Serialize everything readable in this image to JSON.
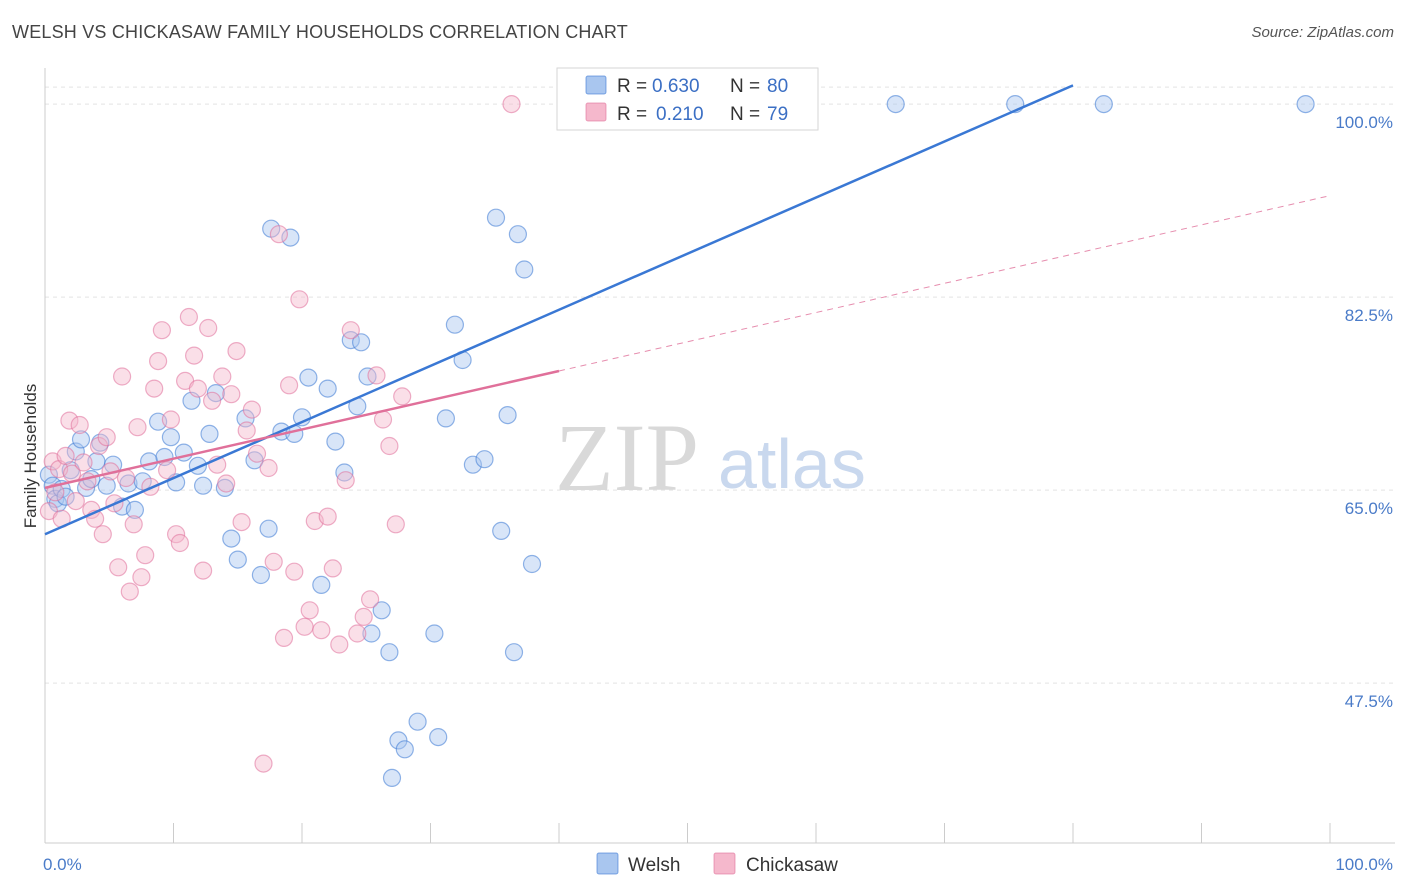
{
  "title": "WELSH VS CHICKASAW FAMILY HOUSEHOLDS CORRELATION CHART",
  "source": "Source: ZipAtlas.com",
  "watermark": {
    "zip": "ZIP",
    "atlas": "atlas"
  },
  "colors": {
    "welsh": "#3a78d4",
    "chickasaw": "#e0709a",
    "welsh_fill": "#a9c6ef",
    "chickasaw_fill": "#f5b8cc"
  },
  "chart_data": {
    "type": "scatter",
    "title": "WELSH VS CHICKASAW FAMILY HOUSEHOLDS CORRELATION CHART",
    "xlabel": "",
    "ylabel": "Family Households",
    "xlim": [
      0,
      100
    ],
    "ylim": [
      33,
      104
    ],
    "x_tick_labels": [
      {
        "value": 0,
        "label": "0.0%"
      },
      {
        "value": 100,
        "label": "100.0%"
      }
    ],
    "y_ticks": [
      {
        "value": 100,
        "label": "100.0%"
      },
      {
        "value": 82.5,
        "label": "82.5%"
      },
      {
        "value": 65,
        "label": "65.0%"
      },
      {
        "value": 47.5,
        "label": "47.5%"
      }
    ],
    "grid": true,
    "legend_position": "top-center",
    "legend": [
      {
        "name": "Welsh",
        "r_label": "R = ",
        "r": "0.630",
        "n_label": "N = ",
        "n": "80"
      },
      {
        "name": "Chickasaw",
        "r_label": "R = ",
        "r": "0.210",
        "n_label": "N = ",
        "n": "79"
      }
    ],
    "series": [
      {
        "name": "Welsh",
        "trend": {
          "x": [
            0,
            80
          ],
          "y": [
            61.0,
            101.7
          ]
        },
        "points": [
          [
            0.3,
            66.4
          ],
          [
            0.6,
            65.4
          ],
          [
            0.8,
            64.2
          ],
          [
            1.0,
            63.8
          ],
          [
            1.3,
            65.1
          ],
          [
            1.6,
            64.4
          ],
          [
            2.0,
            66.8
          ],
          [
            2.4,
            68.5
          ],
          [
            2.8,
            69.6
          ],
          [
            3.2,
            65.2
          ],
          [
            3.6,
            66.0
          ],
          [
            4.0,
            67.6
          ],
          [
            4.3,
            69.3
          ],
          [
            4.8,
            65.4
          ],
          [
            5.3,
            67.3
          ],
          [
            6.0,
            63.5
          ],
          [
            6.5,
            65.6
          ],
          [
            7.0,
            63.2
          ],
          [
            7.6,
            65.8
          ],
          [
            8.1,
            67.6
          ],
          [
            8.8,
            71.2
          ],
          [
            9.3,
            68.0
          ],
          [
            9.8,
            69.8
          ],
          [
            10.2,
            65.7
          ],
          [
            10.8,
            68.4
          ],
          [
            11.4,
            73.1
          ],
          [
            11.9,
            67.2
          ],
          [
            12.3,
            65.4
          ],
          [
            12.8,
            70.1
          ],
          [
            13.3,
            73.8
          ],
          [
            14.0,
            65.2
          ],
          [
            14.5,
            60.6
          ],
          [
            15.0,
            58.7
          ],
          [
            15.6,
            71.5
          ],
          [
            16.3,
            67.7
          ],
          [
            16.8,
            57.3
          ],
          [
            17.4,
            61.5
          ],
          [
            17.6,
            88.7
          ],
          [
            18.4,
            70.3
          ],
          [
            19.1,
            87.9
          ],
          [
            19.4,
            70.1
          ],
          [
            20.0,
            71.6
          ],
          [
            20.5,
            75.2
          ],
          [
            21.5,
            56.4
          ],
          [
            22.0,
            74.2
          ],
          [
            22.6,
            69.4
          ],
          [
            23.3,
            66.6
          ],
          [
            23.8,
            78.6
          ],
          [
            24.3,
            72.6
          ],
          [
            24.6,
            78.4
          ],
          [
            25.1,
            75.3
          ],
          [
            25.4,
            52.0
          ],
          [
            26.2,
            54.1
          ],
          [
            26.8,
            50.3
          ],
          [
            27.0,
            38.9
          ],
          [
            27.5,
            42.3
          ],
          [
            28.0,
            41.5
          ],
          [
            29.0,
            44.0
          ],
          [
            30.3,
            52.0
          ],
          [
            30.6,
            42.6
          ],
          [
            31.2,
            71.5
          ],
          [
            31.9,
            80.0
          ],
          [
            32.5,
            76.8
          ],
          [
            33.3,
            67.3
          ],
          [
            34.2,
            67.8
          ],
          [
            35.1,
            89.7
          ],
          [
            35.5,
            61.3
          ],
          [
            36.0,
            71.8
          ],
          [
            36.5,
            50.3
          ],
          [
            36.8,
            88.2
          ],
          [
            37.3,
            85.0
          ],
          [
            37.9,
            58.3
          ],
          [
            42.0,
            100.0
          ],
          [
            45.6,
            100.0
          ],
          [
            48.4,
            100.0
          ],
          [
            55.1,
            100.0
          ],
          [
            66.2,
            100.0
          ],
          [
            75.5,
            100.0
          ],
          [
            82.4,
            100.0
          ],
          [
            98.1,
            100.0
          ]
        ]
      },
      {
        "name": "Chickasaw",
        "trend": {
          "x": [
            0,
            40
          ],
          "y": [
            65.2,
            75.8
          ]
        },
        "trend_ext": {
          "x": [
            40,
            100
          ],
          "y": [
            75.8,
            91.7
          ]
        },
        "points": [
          [
            0.3,
            63.1
          ],
          [
            0.6,
            67.6
          ],
          [
            0.8,
            64.8
          ],
          [
            1.1,
            66.9
          ],
          [
            1.3,
            62.4
          ],
          [
            1.6,
            68.1
          ],
          [
            1.9,
            71.3
          ],
          [
            2.1,
            66.5
          ],
          [
            2.4,
            64.0
          ],
          [
            2.7,
            70.9
          ],
          [
            3.0,
            67.5
          ],
          [
            3.3,
            65.8
          ],
          [
            3.6,
            63.2
          ],
          [
            3.9,
            62.4
          ],
          [
            4.2,
            69.0
          ],
          [
            4.5,
            61.0
          ],
          [
            4.8,
            69.8
          ],
          [
            5.1,
            66.7
          ],
          [
            5.4,
            63.8
          ],
          [
            5.7,
            58.0
          ],
          [
            6.0,
            75.3
          ],
          [
            6.3,
            66.1
          ],
          [
            6.6,
            55.8
          ],
          [
            6.9,
            61.9
          ],
          [
            7.2,
            70.7
          ],
          [
            7.5,
            57.1
          ],
          [
            7.8,
            59.1
          ],
          [
            8.2,
            65.3
          ],
          [
            8.5,
            74.2
          ],
          [
            8.8,
            76.7
          ],
          [
            9.1,
            79.5
          ],
          [
            9.5,
            66.8
          ],
          [
            9.8,
            71.4
          ],
          [
            10.2,
            61.0
          ],
          [
            10.5,
            60.2
          ],
          [
            10.9,
            74.9
          ],
          [
            11.2,
            80.7
          ],
          [
            11.6,
            77.2
          ],
          [
            11.9,
            74.2
          ],
          [
            12.3,
            57.7
          ],
          [
            12.7,
            79.7
          ],
          [
            13.0,
            73.1
          ],
          [
            13.4,
            67.3
          ],
          [
            13.8,
            75.3
          ],
          [
            14.1,
            65.6
          ],
          [
            14.5,
            73.7
          ],
          [
            14.9,
            77.6
          ],
          [
            15.3,
            62.1
          ],
          [
            15.7,
            70.4
          ],
          [
            16.1,
            72.3
          ],
          [
            16.5,
            68.3
          ],
          [
            17.0,
            40.2
          ],
          [
            17.4,
            67.0
          ],
          [
            17.8,
            58.5
          ],
          [
            18.2,
            88.2
          ],
          [
            18.6,
            51.6
          ],
          [
            19.0,
            74.5
          ],
          [
            19.4,
            57.6
          ],
          [
            19.8,
            82.3
          ],
          [
            20.2,
            52.6
          ],
          [
            20.6,
            54.1
          ],
          [
            21.0,
            62.2
          ],
          [
            21.5,
            52.3
          ],
          [
            22.0,
            62.6
          ],
          [
            22.4,
            57.9
          ],
          [
            22.9,
            51.0
          ],
          [
            23.4,
            65.9
          ],
          [
            23.8,
            79.5
          ],
          [
            24.3,
            52.0
          ],
          [
            24.8,
            53.5
          ],
          [
            25.3,
            55.1
          ],
          [
            25.8,
            75.4
          ],
          [
            26.3,
            71.4
          ],
          [
            26.8,
            69.0
          ],
          [
            27.3,
            61.9
          ],
          [
            27.8,
            73.5
          ],
          [
            36.3,
            100.0
          ],
          [
            42.7,
            100.0
          ],
          [
            45.7,
            100.0
          ]
        ]
      }
    ]
  }
}
